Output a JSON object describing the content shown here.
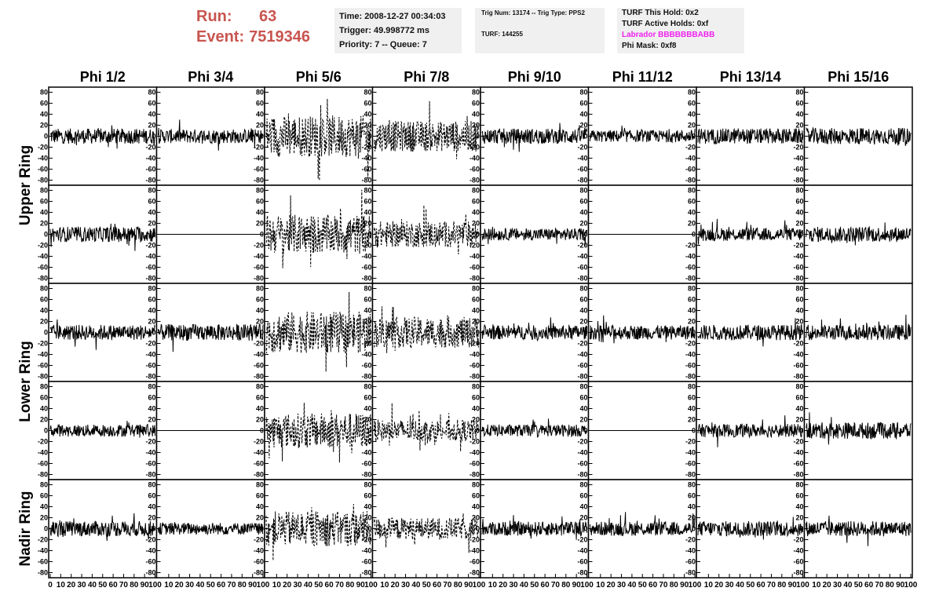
{
  "header": {
    "run_label": "Run:",
    "run_value": "63",
    "event_label": "Event:",
    "event_value": "7519346"
  },
  "info_panel_1": {
    "time": "Time: 2008-12-27 00:34:03",
    "trigger": "Trigger: 49.998772 ms",
    "priority": "Priority: 7 -- Queue: 7"
  },
  "info_panel_2": {
    "trig": "Trig Num: 13174 -- Trig Type: PPS2",
    "turf": "TURF: 144255"
  },
  "info_panel_3": {
    "hold": "TURF This Hold: 0x2",
    "active": "TURF Active Holds: 0xf",
    "labrador": "Labrador BBBBBBBABB",
    "phimask": "Phi Mask: 0xf8",
    "labrador_color": "#ee22ee"
  },
  "chart_data": {
    "type": "line",
    "columns": [
      "Phi 1/2",
      "Phi 3/4",
      "Phi 5/6",
      "Phi 7/8",
      "Phi 9/10",
      "Phi 11/12",
      "Phi 13/14",
      "Phi 15/16"
    ],
    "row_groups": [
      {
        "label": "Upper Ring",
        "rows": 2
      },
      {
        "label": "Lower Ring",
        "rows": 2
      },
      {
        "label": "Nadir Ring",
        "rows": 1
      }
    ],
    "xlim": [
      0,
      100
    ],
    "ylim": [
      -85,
      85
    ],
    "yticks": [
      -80,
      -60,
      -40,
      -20,
      0,
      20,
      40,
      60,
      80
    ],
    "xtick_labels": [
      "0",
      "10",
      "20",
      "30",
      "40",
      "50",
      "60",
      "70",
      "80",
      "90",
      "100"
    ],
    "panels": [
      [
        {
          "style": "solid",
          "amp": 14,
          "flat": false
        },
        {
          "style": "solid",
          "amp": 13,
          "flat": false
        },
        {
          "style": "dashed",
          "amp": 38,
          "flat": false
        },
        {
          "style": "dashed",
          "amp": 28,
          "flat": false
        },
        {
          "style": "solid",
          "amp": 14,
          "flat": false
        },
        {
          "style": "solid",
          "amp": 11,
          "flat": false
        },
        {
          "style": "solid",
          "amp": 14,
          "flat": false
        },
        {
          "style": "solid",
          "amp": 15,
          "flat": false
        }
      ],
      [
        {
          "style": "solid",
          "amp": 14,
          "flat": false
        },
        {
          "style": "solid",
          "amp": 0,
          "flat": true
        },
        {
          "style": "dashed",
          "amp": 36,
          "flat": false
        },
        {
          "style": "dashed",
          "amp": 24,
          "flat": false
        },
        {
          "style": "solid",
          "amp": 11,
          "flat": false
        },
        {
          "style": "solid",
          "amp": 0,
          "flat": true
        },
        {
          "style": "solid",
          "amp": 12,
          "flat": false
        },
        {
          "style": "solid",
          "amp": 14,
          "flat": false
        }
      ],
      [
        {
          "style": "solid",
          "amp": 14,
          "flat": false
        },
        {
          "style": "solid",
          "amp": 15,
          "flat": false
        },
        {
          "style": "dashed",
          "amp": 38,
          "flat": false
        },
        {
          "style": "dashed",
          "amp": 28,
          "flat": false
        },
        {
          "style": "solid",
          "amp": 13,
          "flat": false
        },
        {
          "style": "solid",
          "amp": 13,
          "flat": false
        },
        {
          "style": "solid",
          "amp": 14,
          "flat": false
        },
        {
          "style": "solid",
          "amp": 14,
          "flat": false
        }
      ],
      [
        {
          "style": "solid",
          "amp": 11,
          "flat": false
        },
        {
          "style": "solid",
          "amp": 0,
          "flat": true
        },
        {
          "style": "dashed",
          "amp": 32,
          "flat": false
        },
        {
          "style": "dashed",
          "amp": 20,
          "flat": false
        },
        {
          "style": "solid",
          "amp": 11,
          "flat": false
        },
        {
          "style": "solid",
          "amp": 0,
          "flat": true
        },
        {
          "style": "solid",
          "amp": 12,
          "flat": false
        },
        {
          "style": "solid",
          "amp": 15,
          "flat": false
        }
      ],
      [
        {
          "style": "solid",
          "amp": 14,
          "flat": false
        },
        {
          "style": "solid",
          "amp": 11,
          "flat": false
        },
        {
          "style": "dashed",
          "amp": 32,
          "flat": false
        },
        {
          "style": "dashed",
          "amp": 20,
          "flat": false
        },
        {
          "style": "solid",
          "amp": 13,
          "flat": false
        },
        {
          "style": "solid",
          "amp": 13,
          "flat": false
        },
        {
          "style": "solid",
          "amp": 14,
          "flat": false
        },
        {
          "style": "solid",
          "amp": 14,
          "flat": false
        }
      ]
    ]
  }
}
